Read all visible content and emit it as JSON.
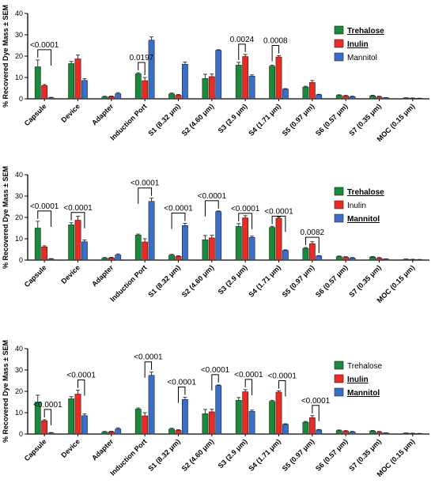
{
  "figure": {
    "panel_count": 3
  },
  "chart_data": [
    {
      "type": "bar",
      "ylabel": "% Recovered Dye Mass ± SEM",
      "ylim": [
        0,
        40
      ],
      "yticks": [
        "0",
        "10",
        "20",
        "30",
        "40"
      ],
      "categories": [
        "Capsule",
        "Device",
        "Adapter",
        "Induction Port",
        "S1 (8.32 μm)",
        "S2 (4.60 μm)",
        "S3 (2.9 μm)",
        "S4 (1.71 μm)",
        "S5 (0.97 μm)",
        "S6 (0.57 μm)",
        "S7 (0.35 μm)",
        "MOC (0.15 μm)"
      ],
      "series": [
        {
          "name": "Trehalose",
          "color": "#1a8a3a",
          "values": [
            15.0,
            16.5,
            0.9,
            11.7,
            2.3,
            9.5,
            15.8,
            15.3,
            5.5,
            1.6,
            1.4,
            0.4
          ],
          "errors": [
            3.2,
            1.0,
            0.3,
            0.5,
            0.4,
            2.0,
            1.3,
            0.5,
            0.4,
            0.3,
            0.3,
            0.1
          ]
        },
        {
          "name": "Inulin",
          "color": "#ea2b23",
          "values": [
            6.2,
            18.7,
            1.0,
            8.5,
            1.7,
            10.4,
            19.8,
            19.6,
            7.7,
            1.3,
            0.9,
            0.3
          ],
          "errors": [
            0.5,
            1.8,
            0.3,
            1.5,
            0.3,
            1.2,
            1.0,
            0.6,
            0.9,
            0.3,
            0.3,
            0.1
          ]
        },
        {
          "name": "Mannitol",
          "color": "#3a6fc9",
          "values": [
            0.5,
            8.6,
            2.4,
            27.5,
            16.2,
            22.7,
            10.6,
            4.5,
            1.9,
            1.0,
            0.5,
            0.2
          ],
          "errors": [
            0.2,
            0.8,
            0.5,
            1.5,
            1.0,
            0.3,
            0.6,
            0.3,
            0.2,
            0.2,
            0.1,
            0.1
          ]
        }
      ],
      "legend": {
        "placement": "top-right",
        "emphasized": [
          "Trehalose",
          "Inulin"
        ]
      },
      "annotations": [
        {
          "text": "<0.0001",
          "category": "Capsule",
          "from": "Trehalose",
          "to": "Mannitol"
        },
        {
          "text": "0.0197",
          "category": "Induction Port",
          "from": "Trehalose",
          "to": "Inulin"
        },
        {
          "text": "0.0024",
          "category": "S3 (2.9 μm)",
          "from": "Trehalose",
          "to": "Inulin"
        },
        {
          "text": "0.0008",
          "category": "S4 (1.71 μm)",
          "from": "Trehalose",
          "to": "Inulin"
        }
      ]
    },
    {
      "type": "bar",
      "ylabel": "% Recovered Dye Mass ± SEM",
      "ylim": [
        0,
        40
      ],
      "yticks": [
        "0",
        "10",
        "20",
        "30",
        "40"
      ],
      "categories": [
        "Capsule",
        "Device",
        "Adapter",
        "Induction Port",
        "S1 (8.32 μm)",
        "S2 (4.60 μm)",
        "S3 (2.9 μm)",
        "S4 (1.71 μm)",
        "S5 (0.97 μm)",
        "S6 (0.57 μm)",
        "S7 (0.35 μm)",
        "MOC (0.15 μm)"
      ],
      "series": [
        {
          "name": "Trehalose",
          "color": "#1a8a3a",
          "values": [
            15.0,
            16.5,
            0.9,
            11.7,
            2.3,
            9.5,
            15.8,
            15.3,
            5.5,
            1.6,
            1.4,
            0.4
          ],
          "errors": [
            3.2,
            1.0,
            0.3,
            0.5,
            0.4,
            2.0,
            1.3,
            0.5,
            0.4,
            0.3,
            0.3,
            0.1
          ]
        },
        {
          "name": "Inulin",
          "color": "#ea2b23",
          "values": [
            6.2,
            18.7,
            1.0,
            8.5,
            1.7,
            10.4,
            19.8,
            19.6,
            7.7,
            1.3,
            0.9,
            0.3
          ],
          "errors": [
            0.5,
            1.8,
            0.3,
            1.5,
            0.3,
            1.2,
            1.0,
            0.6,
            0.9,
            0.3,
            0.3,
            0.1
          ]
        },
        {
          "name": "Mannitol",
          "color": "#3a6fc9",
          "values": [
            0.5,
            8.6,
            2.4,
            27.5,
            16.2,
            22.7,
            10.6,
            4.5,
            1.9,
            1.0,
            0.5,
            0.2
          ],
          "errors": [
            0.2,
            0.8,
            0.5,
            1.5,
            1.0,
            0.3,
            0.6,
            0.3,
            0.2,
            0.2,
            0.1,
            0.1
          ]
        }
      ],
      "legend": {
        "placement": "top-right",
        "emphasized": [
          "Trehalose",
          "Mannitol"
        ]
      },
      "annotations": [
        {
          "text": "<0.0001",
          "category": "Capsule",
          "from": "Trehalose",
          "to": "Mannitol"
        },
        {
          "text": "<0.0001",
          "category": "Device",
          "from": "Trehalose",
          "to": "Mannitol"
        },
        {
          "text": "<0.0001",
          "category": "Induction Port",
          "from": "Trehalose",
          "to": "Mannitol"
        },
        {
          "text": "<0.0001",
          "category": "S1 (8.32 μm)",
          "from": "Trehalose",
          "to": "Mannitol"
        },
        {
          "text": "<0.0001",
          "category": "S2 (4.60 μm)",
          "from": "Trehalose",
          "to": "Mannitol"
        },
        {
          "text": "<0.0001",
          "category": "S3 (2.9 μm)",
          "from": "Trehalose",
          "to": "Mannitol"
        },
        {
          "text": "<0.0001",
          "category": "S4 (1.71 μm)",
          "from": "Trehalose",
          "to": "Mannitol"
        },
        {
          "text": "0.0082",
          "category": "S5 (0.97 μm)",
          "from": "Trehalose",
          "to": "Mannitol"
        }
      ]
    },
    {
      "type": "bar",
      "ylabel": "% Recovered Dye Mass ± SEM",
      "ylim": [
        0,
        40
      ],
      "yticks": [
        "0",
        "10",
        "20",
        "30",
        "40"
      ],
      "categories": [
        "Capsule",
        "Device",
        "Adapter",
        "Induction Port",
        "S1 (8.32 μm)",
        "S2 (4.60 μm)",
        "S3 (2.9 μm)",
        "S4 (1.71 μm)",
        "S5 (0.97 μm)",
        "S6 (0.57 μm)",
        "S7 (0.35 μm)",
        "MOC (0.15 μm)"
      ],
      "series": [
        {
          "name": "Trehalose",
          "color": "#1a8a3a",
          "values": [
            15.0,
            16.5,
            0.9,
            11.7,
            2.3,
            9.5,
            15.8,
            15.3,
            5.5,
            1.6,
            1.4,
            0.4
          ],
          "errors": [
            3.2,
            1.0,
            0.3,
            0.5,
            0.4,
            2.0,
            1.3,
            0.5,
            0.4,
            0.3,
            0.3,
            0.1
          ]
        },
        {
          "name": "Inulin",
          "color": "#ea2b23",
          "values": [
            6.2,
            18.7,
            1.0,
            8.5,
            1.7,
            10.4,
            19.8,
            19.6,
            7.7,
            1.3,
            0.9,
            0.3
          ],
          "errors": [
            0.5,
            1.8,
            0.3,
            1.5,
            0.3,
            1.2,
            1.0,
            0.6,
            0.9,
            0.3,
            0.3,
            0.1
          ]
        },
        {
          "name": "Mannitol",
          "color": "#3a6fc9",
          "values": [
            0.5,
            8.6,
            2.4,
            27.5,
            16.2,
            22.7,
            10.6,
            4.5,
            1.9,
            1.0,
            0.5,
            0.2
          ],
          "errors": [
            0.2,
            0.8,
            0.5,
            1.5,
            1.0,
            0.3,
            0.6,
            0.3,
            0.2,
            0.2,
            0.1,
            0.1
          ]
        }
      ],
      "legend": {
        "placement": "top-right",
        "emphasized": [
          "Inulin",
          "Mannitol"
        ]
      },
      "annotations": [
        {
          "text": "<0.0001",
          "category": "Capsule",
          "from": "Inulin",
          "to": "Mannitol"
        },
        {
          "text": "<0.0001",
          "category": "Device",
          "from": "Inulin",
          "to": "Mannitol"
        },
        {
          "text": "<0.0001",
          "category": "Induction Port",
          "from": "Inulin",
          "to": "Mannitol"
        },
        {
          "text": "<0.0001",
          "category": "S1 (8.32 μm)",
          "from": "Inulin",
          "to": "Mannitol"
        },
        {
          "text": "<0.0001",
          "category": "S2 (4.60 μm)",
          "from": "Inulin",
          "to": "Mannitol"
        },
        {
          "text": "<0.0001",
          "category": "S3 (2.9 μm)",
          "from": "Inulin",
          "to": "Mannitol"
        },
        {
          "text": "<0.0001",
          "category": "S4 (1.71 μm)",
          "from": "Inulin",
          "to": "Mannitol"
        },
        {
          "text": "<0.0001",
          "category": "S5 (0.97 μm)",
          "from": "Inulin",
          "to": "Mannitol"
        }
      ]
    }
  ]
}
